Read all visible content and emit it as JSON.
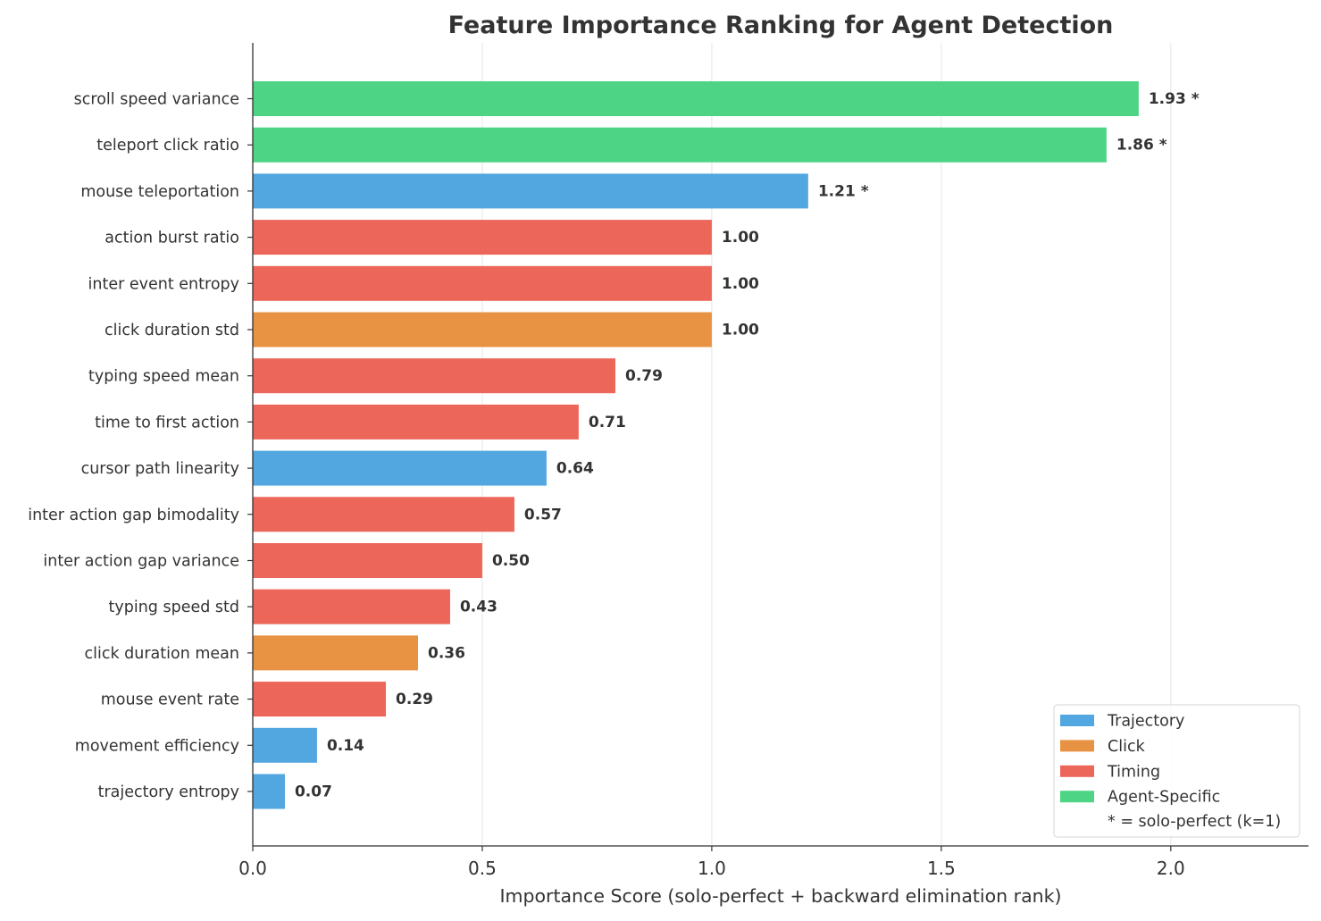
{
  "chart_data": {
    "type": "bar",
    "orientation": "horizontal",
    "title": "Feature Importance Ranking for Agent Detection",
    "xlabel": "Importance Score (solo-perfect + backward elimination rank)",
    "ylabel": "",
    "xlim": [
      0,
      2.3
    ],
    "xticks": [
      0.0,
      0.5,
      1.0,
      1.5,
      2.0
    ],
    "xtick_labels": [
      "0.0",
      "0.5",
      "1.0",
      "1.5",
      "2.0"
    ],
    "grid": "vertical",
    "legend_position": "bottom-right",
    "legend": [
      {
        "label": "Trajectory",
        "color": "#52a7e0"
      },
      {
        "label": "Click",
        "color": "#e89343"
      },
      {
        "label": "Timing",
        "color": "#ec665a"
      },
      {
        "label": "Agent-Specific",
        "color": "#4dd484"
      }
    ],
    "legend_note": "* = solo-perfect (k=1)",
    "bars": [
      {
        "label": "scroll speed variance",
        "value": 1.93,
        "value_label": "1.93 *",
        "group": "Agent-Specific"
      },
      {
        "label": "teleport click ratio",
        "value": 1.86,
        "value_label": "1.86 *",
        "group": "Agent-Specific"
      },
      {
        "label": "mouse teleportation",
        "value": 1.21,
        "value_label": "1.21 *",
        "group": "Trajectory"
      },
      {
        "label": "action burst ratio",
        "value": 1.0,
        "value_label": "1.00",
        "group": "Timing"
      },
      {
        "label": "inter event entropy",
        "value": 1.0,
        "value_label": "1.00",
        "group": "Timing"
      },
      {
        "label": "click duration std",
        "value": 1.0,
        "value_label": "1.00",
        "group": "Click"
      },
      {
        "label": "typing speed mean",
        "value": 0.79,
        "value_label": "0.79",
        "group": "Timing"
      },
      {
        "label": "time to first action",
        "value": 0.71,
        "value_label": "0.71",
        "group": "Timing"
      },
      {
        "label": "cursor path linearity",
        "value": 0.64,
        "value_label": "0.64",
        "group": "Trajectory"
      },
      {
        "label": "inter action gap bimodality",
        "value": 0.57,
        "value_label": "0.57",
        "group": "Timing"
      },
      {
        "label": "inter action gap variance",
        "value": 0.5,
        "value_label": "0.50",
        "group": "Timing"
      },
      {
        "label": "typing speed std",
        "value": 0.43,
        "value_label": "0.43",
        "group": "Timing"
      },
      {
        "label": "click duration mean",
        "value": 0.36,
        "value_label": "0.36",
        "group": "Click"
      },
      {
        "label": "mouse event rate",
        "value": 0.29,
        "value_label": "0.29",
        "group": "Timing"
      },
      {
        "label": "movement efficiency",
        "value": 0.14,
        "value_label": "0.14",
        "group": "Trajectory"
      },
      {
        "label": "trajectory entropy",
        "value": 0.07,
        "value_label": "0.07",
        "group": "Trajectory"
      }
    ]
  }
}
